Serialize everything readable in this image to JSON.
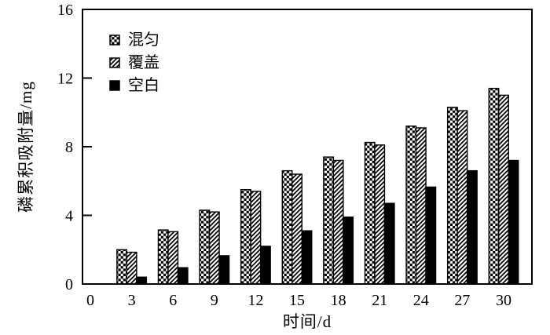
{
  "chart_data": {
    "type": "bar",
    "title": "",
    "xlabel": "时间/d",
    "ylabel": "磷累积吸附量/mg",
    "categories": [
      "0",
      "3",
      "6",
      "9",
      "12",
      "15",
      "18",
      "21",
      "24",
      "27",
      "30"
    ],
    "series": [
      {
        "name": "混匀",
        "pattern": "checkerboard",
        "values": [
          0,
          2.0,
          3.15,
          4.3,
          5.5,
          6.6,
          7.4,
          8.25,
          9.2,
          10.3,
          11.4
        ]
      },
      {
        "name": "覆盖",
        "pattern": "diagonal-stripes",
        "values": [
          0,
          1.85,
          3.05,
          4.2,
          5.4,
          6.4,
          7.2,
          8.1,
          9.1,
          10.1,
          11.0
        ]
      },
      {
        "name": "空白",
        "pattern": "solid-black",
        "values": [
          0,
          0.4,
          0.95,
          1.65,
          2.2,
          3.1,
          3.9,
          4.7,
          5.65,
          6.6,
          7.2
        ]
      }
    ],
    "ylim": [
      0,
      16
    ],
    "yticks": [
      0,
      4,
      8,
      12,
      16
    ],
    "grid": false,
    "legend_position": "upper-left-inside",
    "colors": {
      "foreground": "#000000",
      "background": "#ffffff"
    }
  }
}
